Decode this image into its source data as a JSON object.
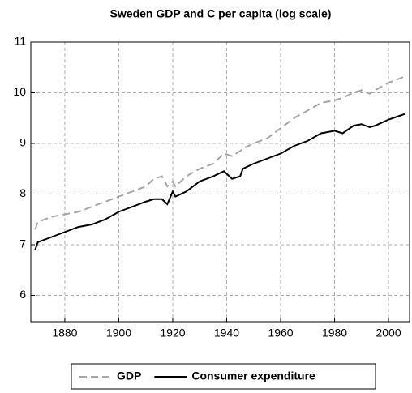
{
  "chart_data": {
    "type": "line",
    "title": "Sweden GDP and C per capita (log scale)",
    "x": [
      1869,
      1870,
      1875,
      1880,
      1885,
      1890,
      1895,
      1900,
      1905,
      1910,
      1913,
      1916,
      1918,
      1920,
      1921,
      1925,
      1930,
      1935,
      1939,
      1942,
      1945,
      1946,
      1950,
      1955,
      1960,
      1965,
      1970,
      1975,
      1980,
      1983,
      1987,
      1990,
      1993,
      1995,
      2000,
      2006
    ],
    "series": [
      {
        "name": "GDP",
        "color": "#a6a6a6",
        "dash": true,
        "values": [
          7.3,
          7.45,
          7.55,
          7.6,
          7.65,
          7.75,
          7.85,
          7.95,
          8.05,
          8.15,
          8.3,
          8.35,
          8.15,
          8.25,
          8.15,
          8.35,
          8.5,
          8.6,
          8.8,
          8.75,
          8.85,
          8.9,
          9.0,
          9.1,
          9.3,
          9.5,
          9.65,
          9.8,
          9.85,
          9.9,
          10.0,
          10.05,
          9.98,
          10.05,
          10.2,
          10.32
        ]
      },
      {
        "name": "Consumer expenditure",
        "color": "#000000",
        "dash": false,
        "values": [
          6.9,
          7.05,
          7.15,
          7.25,
          7.35,
          7.4,
          7.5,
          7.65,
          7.75,
          7.85,
          7.9,
          7.9,
          7.8,
          8.05,
          7.95,
          8.05,
          8.25,
          8.35,
          8.45,
          8.3,
          8.35,
          8.5,
          8.6,
          8.7,
          8.8,
          8.95,
          9.05,
          9.2,
          9.25,
          9.2,
          9.35,
          9.38,
          9.32,
          9.35,
          9.47,
          9.58
        ]
      }
    ],
    "xlim": [
      1867.4,
      2007.8
    ],
    "xticks": [
      1880,
      1900,
      1920,
      1940,
      1960,
      1980,
      2000
    ],
    "ylim": [
      5.48,
      11
    ],
    "yticks": [
      6,
      7,
      8,
      9,
      10,
      11
    ],
    "grid": true,
    "legend": "bottom"
  }
}
